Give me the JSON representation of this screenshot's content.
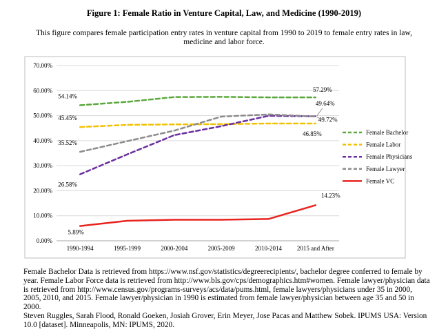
{
  "figure": {
    "title": "Figure 1: Female Ratio in Venture Capital, Law, and Medicine (1990-2019)",
    "subtitle": "This figure compares female participation entry rates in venture capital from 1990 to 2019 to female entry rates in law, medicine and labor force."
  },
  "chart_data": {
    "type": "line",
    "categories": [
      "1990-1994",
      "1995-1999",
      "2000-2004",
      "2005-2009",
      "2010-2014",
      "2015 and After"
    ],
    "ylim": [
      0,
      70
    ],
    "yticks": [
      "0.00%",
      "10.00%",
      "20.00%",
      "30.00%",
      "40.00%",
      "50.00%",
      "60.00%",
      "70.00%"
    ],
    "grid": true,
    "legend_position": "right",
    "series": [
      {
        "name": "Female Bachelor",
        "color": "#5aa83c",
        "dashed": true,
        "values": [
          54.14,
          55.5,
          57.4,
          57.5,
          57.3,
          57.29
        ]
      },
      {
        "name": "Female Labor",
        "color": "#f2c200",
        "dashed": true,
        "values": [
          45.45,
          46.3,
          46.5,
          46.6,
          46.85,
          46.85
        ]
      },
      {
        "name": "Female Physicians",
        "color": "#6a2fa0",
        "dashed": true,
        "values": [
          26.58,
          34.5,
          42.2,
          45.8,
          49.9,
          49.72
        ]
      },
      {
        "name": "Female Lawyer",
        "color": "#8c8c8c",
        "dashed": true,
        "values": [
          35.52,
          39.8,
          44.0,
          49.6,
          50.5,
          49.64
        ]
      },
      {
        "name": "Female VC",
        "color": "#e8231e",
        "dashed": false,
        "values": [
          5.89,
          8.0,
          8.4,
          8.4,
          8.7,
          14.23
        ]
      }
    ],
    "labels": [
      {
        "text": "54.14%",
        "value": 54.14,
        "series": 0,
        "point": 0
      },
      {
        "text": "45.45%",
        "value": 45.45,
        "series": 1,
        "point": 0
      },
      {
        "text": "35.52%",
        "value": 35.52,
        "series": 3,
        "point": 0
      },
      {
        "text": "26.58%",
        "value": 26.58,
        "series": 2,
        "point": 0
      },
      {
        "text": "5.89%",
        "value": 5.89,
        "series": 4,
        "point": 0
      },
      {
        "text": "57.29%",
        "value": 57.29,
        "series": 0,
        "point": 5
      },
      {
        "text": "49.64%",
        "value": 49.64,
        "series": 3,
        "point": 5
      },
      {
        "text": "49.72%",
        "value": 49.72,
        "series": 2,
        "point": 5
      },
      {
        "text": "46.85%",
        "value": 46.85,
        "series": 1,
        "point": 5
      },
      {
        "text": "14.23%",
        "value": 14.23,
        "series": 4,
        "point": 5
      }
    ]
  },
  "notes": [
    "Female Bachelor Data is retrieved from https://www.nsf.gov/statistics/degreerecipients/, bachelor degree conferred to female by year. Female Labor Force data is retrieved from http://www.bls.gov/cps/demographics.htm#women. Female lawyer/physician data is retrieved from http://www.census.gov/programs-surveys/acs/data/pums.html, female lawyers/physicians under 35 in 2000, 2005, 2010, and 2015. Female lawyer/physician in 1990 is estimated from female lawyer/physician between age 35 and 50 in 2000.",
    "Steven Ruggles, Sarah Flood, Ronald Goeken, Josiah Grover, Erin Meyer, Jose Pacas and Matthew Sobek. IPUMS USA: Version 10.0 [dataset]. Minneapolis, MN: IPUMS, 2020."
  ]
}
